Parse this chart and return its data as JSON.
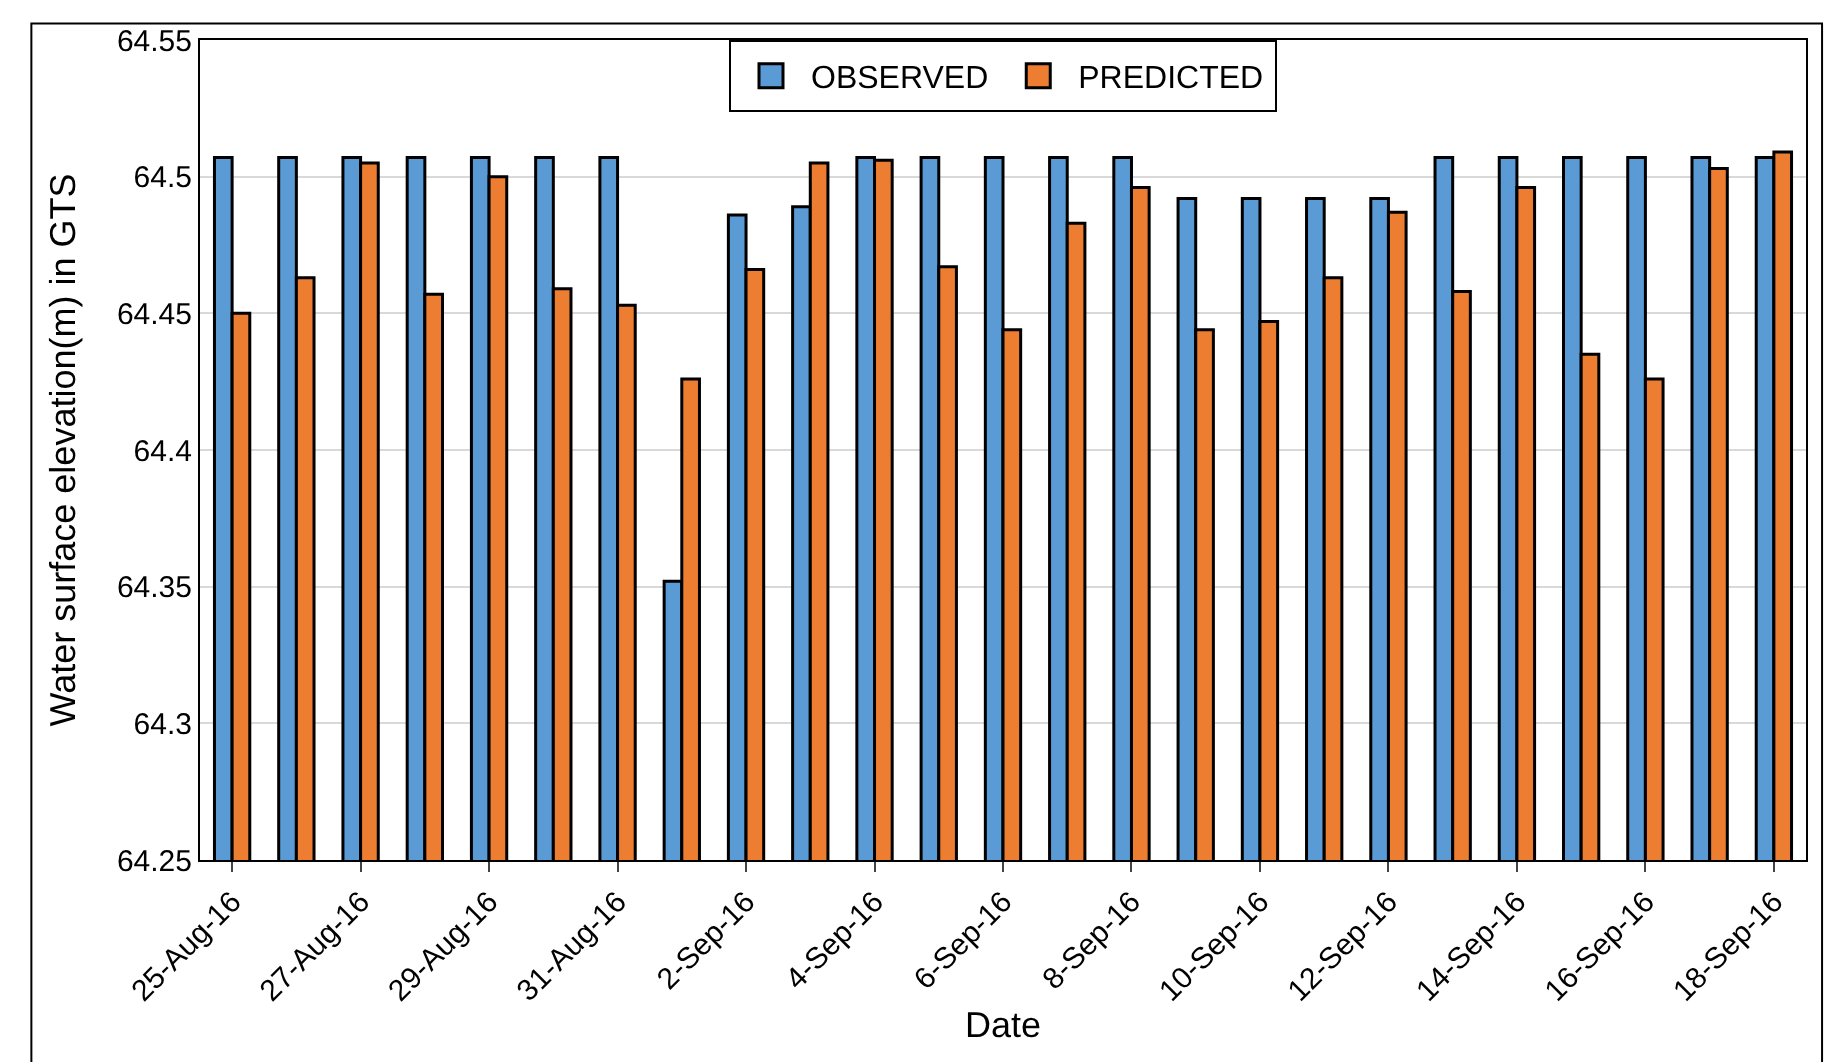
{
  "chart_data": {
    "type": "bar",
    "xlabel": "Date",
    "ylabel": "Water surface elevation(m) in GTS",
    "categories": [
      "25-Aug-16",
      null,
      "27-Aug-16",
      null,
      "29-Aug-16",
      null,
      "31-Aug-16",
      null,
      "2-Sep-16",
      null,
      "4-Sep-16",
      null,
      "6-Sep-16",
      null,
      "8-Sep-16",
      null,
      "10-Sep-16",
      null,
      "12-Sep-16",
      null,
      "14-Sep-16",
      null,
      "16-Sep-16",
      null,
      "18-Sep-16"
    ],
    "series": [
      {
        "name": "OBSERVED",
        "color": "#5b9bd5",
        "values": [
          64.507,
          64.507,
          64.507,
          64.507,
          64.507,
          64.507,
          64.507,
          64.352,
          64.486,
          64.489,
          64.507,
          64.507,
          64.507,
          64.507,
          64.507,
          64.492,
          64.492,
          64.492,
          64.492,
          64.507,
          64.507,
          64.507,
          64.507,
          64.507,
          64.507
        ]
      },
      {
        "name": "PREDICTED",
        "color": "#ed7d31",
        "values": [
          64.45,
          64.463,
          64.505,
          64.457,
          64.5,
          64.459,
          64.453,
          64.426,
          64.466,
          64.505,
          64.506,
          64.467,
          64.444,
          64.483,
          64.496,
          64.444,
          64.447,
          64.463,
          64.487,
          64.458,
          64.496,
          64.435,
          64.426,
          64.503,
          64.509
        ]
      }
    ],
    "ylim": [
      64.25,
      64.55
    ],
    "yticks": [
      64.25,
      64.3,
      64.35,
      64.4,
      64.45,
      64.5,
      64.55
    ],
    "grid": "y",
    "legend": "top"
  }
}
